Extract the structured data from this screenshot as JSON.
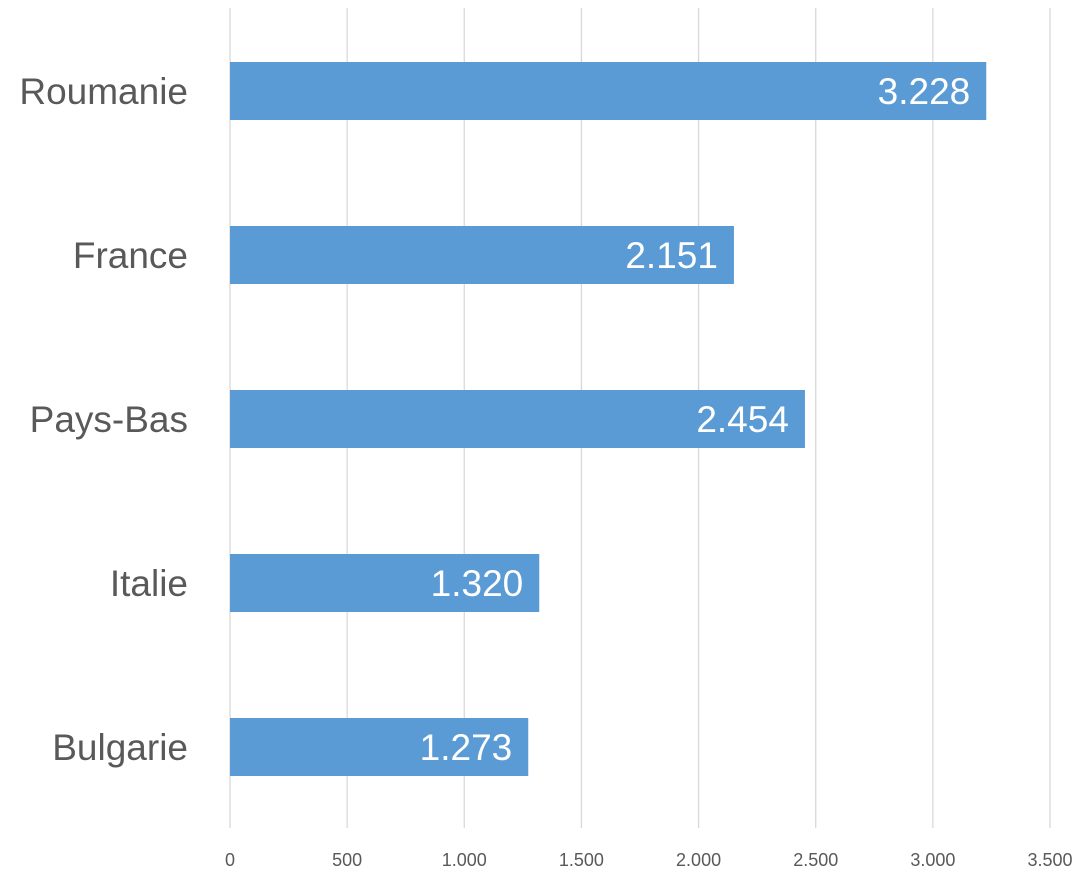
{
  "chart_data": {
    "type": "bar",
    "orientation": "horizontal",
    "title": "",
    "xlabel": "",
    "ylabel": "",
    "categories": [
      "Roumanie",
      "France",
      "Pays-Bas",
      "Italie",
      "Bulgarie"
    ],
    "values": [
      3228,
      2151,
      2454,
      1320,
      1273
    ],
    "value_labels": [
      "3.228",
      "2.151",
      "2.454",
      "1.320",
      "1.273"
    ],
    "xlim": [
      0,
      3500
    ],
    "x_ticks": [
      0,
      500,
      1000,
      1500,
      2000,
      2500,
      3000,
      3500
    ],
    "x_tick_labels": [
      "0",
      "500",
      "1.000",
      "1.500",
      "2.000",
      "2.500",
      "3.000",
      "3.500"
    ],
    "grid": "vertical",
    "legend": "none",
    "colors": {
      "bar": "#5b9bd5",
      "grid": "#d9d9d9",
      "text": "#595959",
      "data_label": "#ffffff"
    }
  }
}
